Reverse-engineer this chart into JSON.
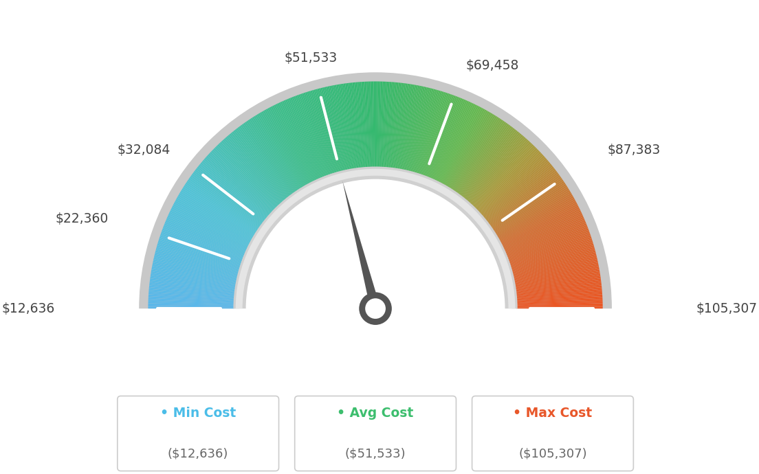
{
  "min_val": 12636,
  "max_val": 105307,
  "avg_val": 51533,
  "tick_values": [
    12636,
    22360,
    32084,
    51533,
    69458,
    87383,
    105307
  ],
  "label_strings": {
    "12636": "$12,636",
    "22360": "$22,360",
    "32084": "$32,084",
    "51533": "$51,533",
    "69458": "$69,458",
    "87383": "$87,383",
    "105307": "$105,307"
  },
  "color_stops": [
    [
      0.0,
      [
        91,
        183,
        234
      ]
    ],
    [
      0.18,
      [
        80,
        195,
        215
      ]
    ],
    [
      0.35,
      [
        61,
        190,
        140
      ]
    ],
    [
      0.5,
      [
        52,
        185,
        110
      ]
    ],
    [
      0.65,
      [
        100,
        185,
        80
      ]
    ],
    [
      0.75,
      [
        170,
        155,
        60
      ]
    ],
    [
      0.85,
      [
        210,
        110,
        50
      ]
    ],
    [
      1.0,
      [
        235,
        85,
        35
      ]
    ]
  ],
  "border_color": "#cccccc",
  "inner_ring_color": "#d5d5d5",
  "inner_fill_color": "#ffffff",
  "needle_color": "#555555",
  "needle_circle_outer": "#555555",
  "needle_circle_inner": "#ffffff",
  "legend_min_color": "#4BBDE8",
  "legend_avg_color": "#3DBE6E",
  "legend_max_color": "#E8572A",
  "legend_value_color": "#666666",
  "background_color": "#ffffff"
}
